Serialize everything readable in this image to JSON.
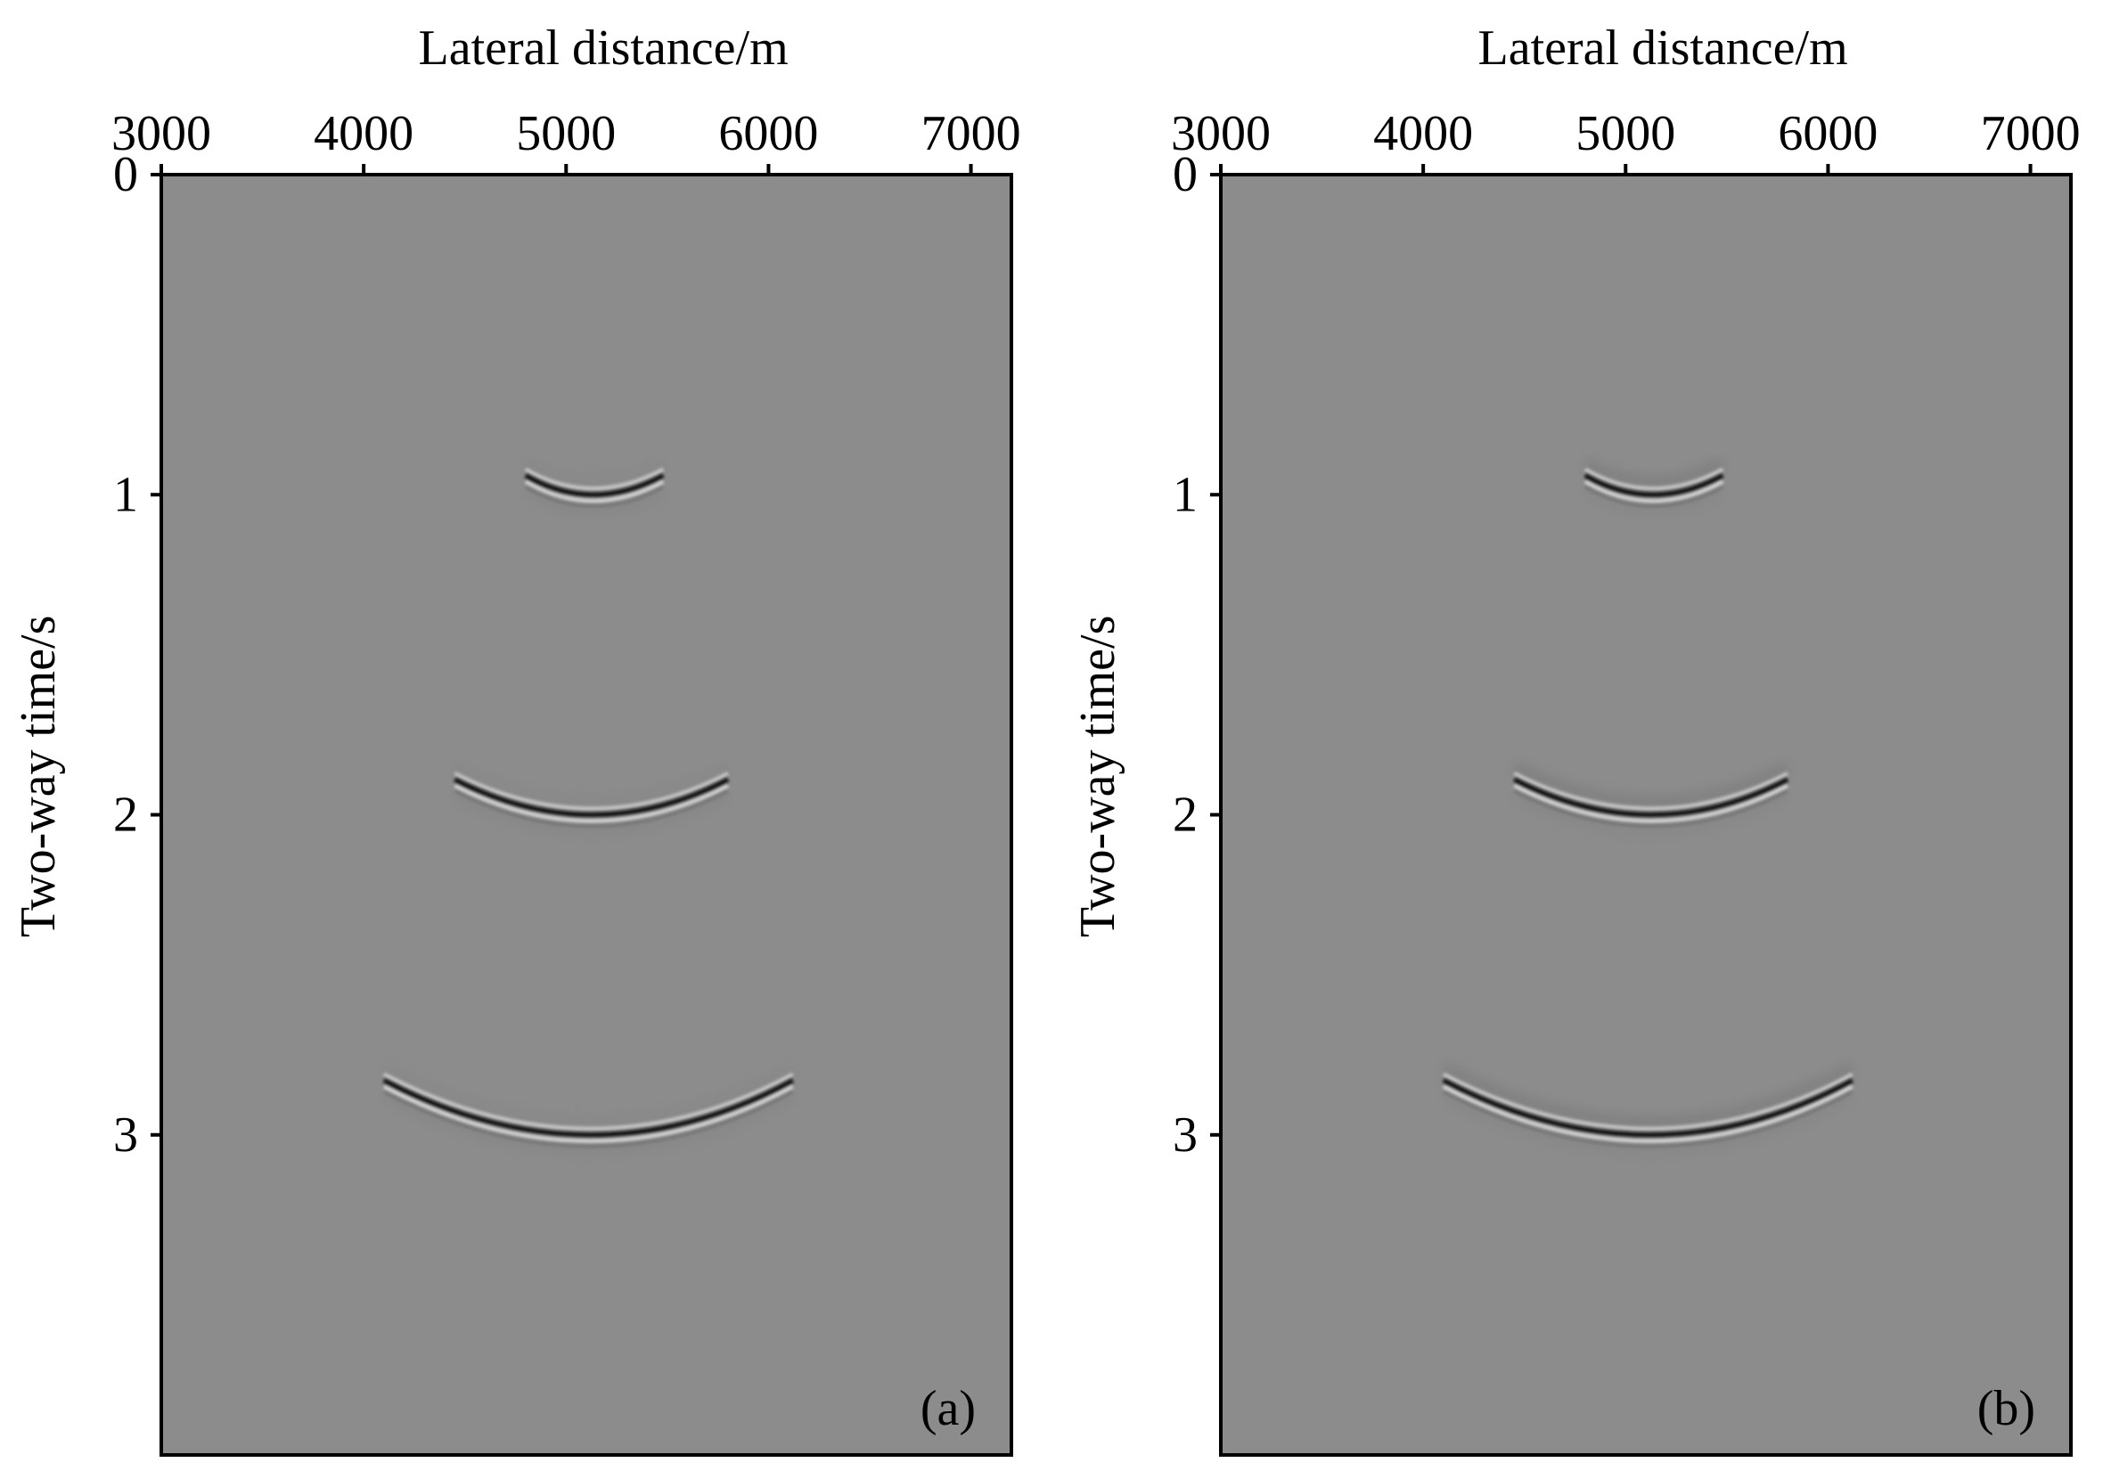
{
  "chart_data": [
    {
      "type": "heatmap",
      "panel_label": "(a)",
      "title": "",
      "xlabel": "Lateral distance/m",
      "ylabel": "Two-way time/s",
      "x_axis_position": "top",
      "y_axis_inverted": true,
      "xlim": [
        3000,
        7200
      ],
      "ylim": [
        0,
        4
      ],
      "xticks": [
        "3000",
        "4000",
        "5000",
        "6000",
        "7000"
      ],
      "xtick_values": [
        3000,
        4000,
        5000,
        6000,
        7000
      ],
      "yticks": [
        "0",
        "1",
        "2",
        "3"
      ],
      "ytick_values": [
        0,
        1,
        2,
        3
      ],
      "grid": false,
      "background_gray": "#8c8c8c",
      "events": [
        {
          "apex_x": 5130,
          "apex_t": 1.0,
          "x_min": 4800,
          "x_max": 5480,
          "edge_t": 0.94
        },
        {
          "apex_x": 5130,
          "apex_t": 2.0,
          "x_min": 4450,
          "x_max": 5800,
          "edge_t": 1.89
        },
        {
          "apex_x": 5130,
          "apex_t": 3.0,
          "x_min": 4100,
          "x_max": 6120,
          "edge_t": 2.83
        }
      ]
    },
    {
      "type": "heatmap",
      "panel_label": "(b)",
      "title": "",
      "xlabel": "Lateral distance/m",
      "ylabel": "Two-way time/s",
      "x_axis_position": "top",
      "y_axis_inverted": true,
      "xlim": [
        3000,
        7200
      ],
      "ylim": [
        0,
        4
      ],
      "xticks": [
        "3000",
        "4000",
        "5000",
        "6000",
        "7000"
      ],
      "xtick_values": [
        3000,
        4000,
        5000,
        6000,
        7000
      ],
      "yticks": [
        "0",
        "1",
        "2",
        "3"
      ],
      "ytick_values": [
        0,
        1,
        2,
        3
      ],
      "grid": false,
      "background_gray": "#8c8c8c",
      "events": [
        {
          "apex_x": 5130,
          "apex_t": 1.0,
          "x_min": 4800,
          "x_max": 5480,
          "edge_t": 0.94
        },
        {
          "apex_x": 5130,
          "apex_t": 2.0,
          "x_min": 4450,
          "x_max": 5800,
          "edge_t": 1.89
        },
        {
          "apex_x": 5130,
          "apex_t": 3.0,
          "x_min": 4100,
          "x_max": 6120,
          "edge_t": 2.83
        }
      ]
    }
  ]
}
